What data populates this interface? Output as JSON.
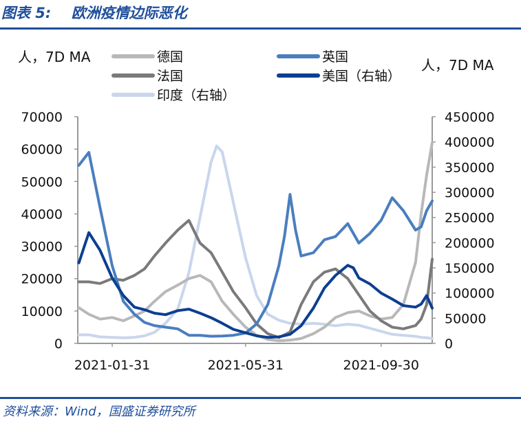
{
  "figure": {
    "title": "图表 5:    欧洲疫情边际恶化",
    "source": "资料来源：Wind，国盛证券研究所"
  },
  "chart_data": {
    "type": "line",
    "ylabel_left": "人，7D MA",
    "ylabel_right": "人，7D MA",
    "ylim_left": [
      0,
      70000
    ],
    "ylim_right": [
      0,
      450000
    ],
    "yticks_left": [
      0,
      10000,
      20000,
      30000,
      40000,
      50000,
      60000,
      70000
    ],
    "yticks_right": [
      0,
      50000,
      100000,
      150000,
      200000,
      250000,
      300000,
      350000,
      400000,
      450000
    ],
    "xlim": [
      "2020-12-31",
      "2021-11-15"
    ],
    "xticks": [
      "2021-01-31",
      "2021-05-31",
      "2021-09-30"
    ],
    "grid": false,
    "legend_position": "top",
    "series": [
      {
        "name": "德国",
        "axis": "left",
        "color": "#b8b8b8",
        "x": [
          "2021-01-01",
          "2021-01-10",
          "2021-01-20",
          "2021-01-31",
          "2021-02-10",
          "2021-02-20",
          "2021-03-01",
          "2021-03-10",
          "2021-03-20",
          "2021-03-31",
          "2021-04-10",
          "2021-04-20",
          "2021-04-30",
          "2021-05-10",
          "2021-05-20",
          "2021-05-31",
          "2021-06-10",
          "2021-06-20",
          "2021-06-30",
          "2021-07-10",
          "2021-07-20",
          "2021-07-31",
          "2021-08-10",
          "2021-08-20",
          "2021-08-31",
          "2021-09-10",
          "2021-09-20",
          "2021-09-30",
          "2021-10-10",
          "2021-10-20",
          "2021-10-31",
          "2021-11-05",
          "2021-11-10",
          "2021-11-15"
        ],
        "values": [
          11000,
          9000,
          7500,
          8000,
          7000,
          8500,
          10000,
          13000,
          16000,
          18000,
          20000,
          21000,
          19000,
          13000,
          9000,
          5000,
          2500,
          1200,
          800,
          1000,
          1500,
          3000,
          5000,
          8000,
          9500,
          10000,
          8500,
          7500,
          8000,
          12000,
          25000,
          40000,
          52000,
          62000
        ]
      },
      {
        "name": "法国",
        "axis": "left",
        "color": "#7a7a7a",
        "x": [
          "2021-01-01",
          "2021-01-10",
          "2021-01-20",
          "2021-01-31",
          "2021-02-10",
          "2021-02-20",
          "2021-03-01",
          "2021-03-10",
          "2021-03-20",
          "2021-03-31",
          "2021-04-10",
          "2021-04-20",
          "2021-04-30",
          "2021-05-10",
          "2021-05-20",
          "2021-05-31",
          "2021-06-10",
          "2021-06-20",
          "2021-06-30",
          "2021-07-10",
          "2021-07-20",
          "2021-07-31",
          "2021-08-10",
          "2021-08-20",
          "2021-08-31",
          "2021-09-10",
          "2021-09-20",
          "2021-09-30",
          "2021-10-10",
          "2021-10-20",
          "2021-10-31",
          "2021-11-05",
          "2021-11-10",
          "2021-11-15"
        ],
        "values": [
          19000,
          19000,
          18500,
          20000,
          19500,
          21000,
          23000,
          27000,
          31000,
          35000,
          38000,
          31000,
          28000,
          22000,
          16000,
          11000,
          6000,
          3000,
          1800,
          3500,
          12000,
          19000,
          22000,
          23000,
          20000,
          15000,
          10000,
          7000,
          5000,
          4500,
          5500,
          7500,
          12000,
          26000
        ]
      },
      {
        "name": "英国",
        "axis": "left",
        "color": "#4a7ebf",
        "x": [
          "2021-01-01",
          "2021-01-10",
          "2021-01-20",
          "2021-01-31",
          "2021-02-10",
          "2021-02-20",
          "2021-03-01",
          "2021-03-10",
          "2021-03-20",
          "2021-03-31",
          "2021-04-10",
          "2021-04-20",
          "2021-04-30",
          "2021-05-10",
          "2021-05-20",
          "2021-05-31",
          "2021-06-10",
          "2021-06-20",
          "2021-06-30",
          "2021-07-05",
          "2021-07-10",
          "2021-07-15",
          "2021-07-20",
          "2021-07-31",
          "2021-08-10",
          "2021-08-20",
          "2021-08-31",
          "2021-09-10",
          "2021-09-20",
          "2021-09-30",
          "2021-10-10",
          "2021-10-20",
          "2021-10-31",
          "2021-11-05",
          "2021-11-10",
          "2021-11-15"
        ],
        "values": [
          55000,
          59000,
          42000,
          24000,
          13000,
          9000,
          6500,
          5500,
          5000,
          4500,
          2500,
          2500,
          2200,
          2300,
          2500,
          3200,
          6000,
          12000,
          24000,
          33000,
          46000,
          35000,
          27000,
          28000,
          32000,
          33000,
          37000,
          31000,
          34000,
          38000,
          45000,
          41000,
          35000,
          36000,
          41000,
          44000
        ]
      },
      {
        "name": "美国（右轴）",
        "axis": "right",
        "color": "#0b3f91",
        "x": [
          "2021-01-01",
          "2021-01-10",
          "2021-01-20",
          "2021-01-31",
          "2021-02-10",
          "2021-02-20",
          "2021-03-01",
          "2021-03-10",
          "2021-03-20",
          "2021-03-31",
          "2021-04-10",
          "2021-04-20",
          "2021-04-30",
          "2021-05-10",
          "2021-05-20",
          "2021-05-31",
          "2021-06-10",
          "2021-06-20",
          "2021-06-30",
          "2021-07-10",
          "2021-07-20",
          "2021-07-31",
          "2021-08-10",
          "2021-08-20",
          "2021-08-31",
          "2021-09-05",
          "2021-09-10",
          "2021-09-20",
          "2021-09-30",
          "2021-10-10",
          "2021-10-20",
          "2021-10-31",
          "2021-11-05",
          "2021-11-10",
          "2021-11-15"
        ],
        "values": [
          160000,
          220000,
          185000,
          130000,
          95000,
          72000,
          67000,
          60000,
          57000,
          65000,
          68000,
          60000,
          51000,
          40000,
          28000,
          21000,
          15000,
          12000,
          13000,
          18000,
          35000,
          70000,
          110000,
          135000,
          155000,
          150000,
          130000,
          118000,
          100000,
          88000,
          75000,
          72000,
          78000,
          95000,
          70000
        ]
      },
      {
        "name": "印度（右轴）",
        "axis": "right",
        "color": "#c9d6ec",
        "x": [
          "2021-01-01",
          "2021-01-10",
          "2021-01-20",
          "2021-01-31",
          "2021-02-10",
          "2021-02-20",
          "2021-03-01",
          "2021-03-10",
          "2021-03-20",
          "2021-03-31",
          "2021-04-10",
          "2021-04-20",
          "2021-04-30",
          "2021-05-05",
          "2021-05-10",
          "2021-05-20",
          "2021-05-31",
          "2021-06-10",
          "2021-06-20",
          "2021-06-30",
          "2021-07-10",
          "2021-07-20",
          "2021-07-31",
          "2021-08-10",
          "2021-08-20",
          "2021-08-31",
          "2021-09-10",
          "2021-09-20",
          "2021-09-30",
          "2021-10-10",
          "2021-10-20",
          "2021-10-31",
          "2021-11-05",
          "2021-11-10",
          "2021-11-15"
        ],
        "values": [
          17000,
          17000,
          13000,
          12000,
          11000,
          12000,
          15000,
          22000,
          40000,
          68000,
          140000,
          250000,
          360000,
          392000,
          380000,
          280000,
          170000,
          95000,
          58000,
          46000,
          40000,
          38000,
          40000,
          38000,
          35000,
          38000,
          36000,
          30000,
          24000,
          18000,
          16000,
          14000,
          12000,
          11000,
          10000
        ]
      }
    ]
  }
}
